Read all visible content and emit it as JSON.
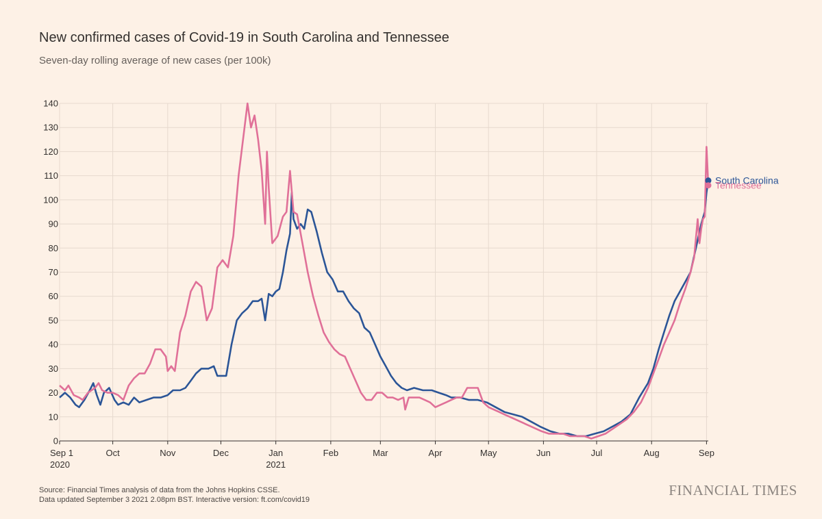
{
  "header": {
    "title": "New confirmed cases of Covid-19 in South Carolina and Tennessee",
    "subtitle": "Seven-day rolling average of new cases (per 100k)"
  },
  "footer": {
    "source_line1": "Source: Financial Times analysis of data from the Johns Hopkins CSSE.",
    "source_line2": "Data updated September 3 2021 2.08pm BST. Interactive version: ft.com/covid19",
    "brand": "FINANCIAL TIMES"
  },
  "chart_data": {
    "type": "line",
    "title": "New confirmed cases of Covid-19 in South Carolina and Tennessee",
    "subtitle": "Seven-day rolling average of new cases (per 100k)",
    "xlabel": "",
    "ylabel": "",
    "x_range": [
      "2020-09-01",
      "2021-09-02"
    ],
    "ylim": [
      0,
      140
    ],
    "yticks": [
      0,
      10,
      20,
      30,
      40,
      50,
      60,
      70,
      80,
      90,
      100,
      110,
      120,
      130,
      140
    ],
    "xticks": [
      {
        "date": "2020-09-01",
        "label": "Sep 1",
        "sublabel": "2020"
      },
      {
        "date": "2020-10-01",
        "label": "Oct",
        "sublabel": ""
      },
      {
        "date": "2020-11-01",
        "label": "Nov",
        "sublabel": ""
      },
      {
        "date": "2020-12-01",
        "label": "Dec",
        "sublabel": ""
      },
      {
        "date": "2021-01-01",
        "label": "Jan",
        "sublabel": "2021"
      },
      {
        "date": "2021-02-01",
        "label": "Feb",
        "sublabel": ""
      },
      {
        "date": "2021-03-01",
        "label": "Mar",
        "sublabel": ""
      },
      {
        "date": "2021-04-01",
        "label": "Apr",
        "sublabel": ""
      },
      {
        "date": "2021-05-01",
        "label": "May",
        "sublabel": ""
      },
      {
        "date": "2021-06-01",
        "label": "Jun",
        "sublabel": ""
      },
      {
        "date": "2021-07-01",
        "label": "Jul",
        "sublabel": ""
      },
      {
        "date": "2021-08-01",
        "label": "Aug",
        "sublabel": ""
      },
      {
        "date": "2021-09-01",
        "label": "Sep",
        "sublabel": ""
      }
    ],
    "grid": true,
    "legend": "end-of-line labels",
    "series": [
      {
        "name": "South Carolina",
        "color": "#2B5597",
        "points": [
          [
            "2020-09-01",
            18
          ],
          [
            "2020-09-04",
            20
          ],
          [
            "2020-09-07",
            18
          ],
          [
            "2020-09-10",
            15
          ],
          [
            "2020-09-12",
            14
          ],
          [
            "2020-09-15",
            17
          ],
          [
            "2020-09-18",
            21
          ],
          [
            "2020-09-20",
            24
          ],
          [
            "2020-09-22",
            19
          ],
          [
            "2020-09-24",
            15
          ],
          [
            "2020-09-26",
            20
          ],
          [
            "2020-09-29",
            22
          ],
          [
            "2020-10-02",
            17
          ],
          [
            "2020-10-04",
            15
          ],
          [
            "2020-10-07",
            16
          ],
          [
            "2020-10-10",
            15
          ],
          [
            "2020-10-13",
            18
          ],
          [
            "2020-10-16",
            16
          ],
          [
            "2020-10-20",
            17
          ],
          [
            "2020-10-24",
            18
          ],
          [
            "2020-10-28",
            18
          ],
          [
            "2020-11-01",
            19
          ],
          [
            "2020-11-04",
            21
          ],
          [
            "2020-11-08",
            21
          ],
          [
            "2020-11-11",
            22
          ],
          [
            "2020-11-14",
            25
          ],
          [
            "2020-11-17",
            28
          ],
          [
            "2020-11-20",
            30
          ],
          [
            "2020-11-24",
            30
          ],
          [
            "2020-11-27",
            31
          ],
          [
            "2020-11-29",
            27
          ],
          [
            "2020-12-02",
            27
          ],
          [
            "2020-12-04",
            27
          ],
          [
            "2020-12-07",
            40
          ],
          [
            "2020-12-10",
            50
          ],
          [
            "2020-12-13",
            53
          ],
          [
            "2020-12-16",
            55
          ],
          [
            "2020-12-19",
            58
          ],
          [
            "2020-12-22",
            58
          ],
          [
            "2020-12-24",
            59
          ],
          [
            "2020-12-26",
            50
          ],
          [
            "2020-12-28",
            61
          ],
          [
            "2020-12-30",
            60
          ],
          [
            "2021-01-01",
            62
          ],
          [
            "2021-01-03",
            63
          ],
          [
            "2021-01-05",
            70
          ],
          [
            "2021-01-07",
            79
          ],
          [
            "2021-01-09",
            86
          ],
          [
            "2021-01-10",
            103
          ],
          [
            "2021-01-11",
            92
          ],
          [
            "2021-01-13",
            88
          ],
          [
            "2021-01-15",
            90
          ],
          [
            "2021-01-17",
            88
          ],
          [
            "2021-01-19",
            96
          ],
          [
            "2021-01-21",
            95
          ],
          [
            "2021-01-24",
            87
          ],
          [
            "2021-01-27",
            78
          ],
          [
            "2021-01-30",
            70
          ],
          [
            "2021-02-02",
            67
          ],
          [
            "2021-02-05",
            62
          ],
          [
            "2021-02-08",
            62
          ],
          [
            "2021-02-11",
            58
          ],
          [
            "2021-02-14",
            55
          ],
          [
            "2021-02-17",
            53
          ],
          [
            "2021-02-20",
            47
          ],
          [
            "2021-02-23",
            45
          ],
          [
            "2021-02-26",
            40
          ],
          [
            "2021-03-01",
            35
          ],
          [
            "2021-03-04",
            31
          ],
          [
            "2021-03-07",
            27
          ],
          [
            "2021-03-10",
            24
          ],
          [
            "2021-03-13",
            22
          ],
          [
            "2021-03-16",
            21
          ],
          [
            "2021-03-20",
            22
          ],
          [
            "2021-03-25",
            21
          ],
          [
            "2021-03-30",
            21
          ],
          [
            "2021-04-03",
            20
          ],
          [
            "2021-04-07",
            19
          ],
          [
            "2021-04-10",
            18
          ],
          [
            "2021-04-15",
            18
          ],
          [
            "2021-04-20",
            17
          ],
          [
            "2021-04-25",
            17
          ],
          [
            "2021-04-30",
            16
          ],
          [
            "2021-05-05",
            14
          ],
          [
            "2021-05-10",
            12
          ],
          [
            "2021-05-15",
            11
          ],
          [
            "2021-05-20",
            10
          ],
          [
            "2021-05-25",
            8
          ],
          [
            "2021-05-30",
            6
          ],
          [
            "2021-06-05",
            4
          ],
          [
            "2021-06-10",
            3
          ],
          [
            "2021-06-15",
            3
          ],
          [
            "2021-06-20",
            2
          ],
          [
            "2021-06-25",
            2
          ],
          [
            "2021-06-30",
            3
          ],
          [
            "2021-07-05",
            4
          ],
          [
            "2021-07-10",
            6
          ],
          [
            "2021-07-15",
            8
          ],
          [
            "2021-07-20",
            11
          ],
          [
            "2021-07-25",
            18
          ],
          [
            "2021-07-30",
            24
          ],
          [
            "2021-08-02",
            30
          ],
          [
            "2021-08-05",
            38
          ],
          [
            "2021-08-08",
            45
          ],
          [
            "2021-08-11",
            52
          ],
          [
            "2021-08-14",
            58
          ],
          [
            "2021-08-17",
            62
          ],
          [
            "2021-08-20",
            66
          ],
          [
            "2021-08-23",
            70
          ],
          [
            "2021-08-26",
            80
          ],
          [
            "2021-08-29",
            90
          ],
          [
            "2021-08-31",
            95
          ],
          [
            "2021-09-01",
            103
          ],
          [
            "2021-09-02",
            108
          ]
        ]
      },
      {
        "name": "Tennessee",
        "color": "#E07098",
        "points": [
          [
            "2020-09-01",
            23
          ],
          [
            "2020-09-04",
            21
          ],
          [
            "2020-09-06",
            23
          ],
          [
            "2020-09-09",
            19
          ],
          [
            "2020-09-12",
            18
          ],
          [
            "2020-09-14",
            17
          ],
          [
            "2020-09-17",
            20
          ],
          [
            "2020-09-21",
            22
          ],
          [
            "2020-09-23",
            24
          ],
          [
            "2020-09-25",
            21
          ],
          [
            "2020-09-28",
            20
          ],
          [
            "2020-10-01",
            20
          ],
          [
            "2020-10-04",
            19
          ],
          [
            "2020-10-07",
            17
          ],
          [
            "2020-10-10",
            23
          ],
          [
            "2020-10-13",
            26
          ],
          [
            "2020-10-16",
            28
          ],
          [
            "2020-10-19",
            28
          ],
          [
            "2020-10-22",
            32
          ],
          [
            "2020-10-25",
            38
          ],
          [
            "2020-10-28",
            38
          ],
          [
            "2020-10-31",
            35
          ],
          [
            "2020-11-01",
            29
          ],
          [
            "2020-11-03",
            31
          ],
          [
            "2020-11-05",
            29
          ],
          [
            "2020-11-08",
            45
          ],
          [
            "2020-11-11",
            52
          ],
          [
            "2020-11-14",
            62
          ],
          [
            "2020-11-17",
            66
          ],
          [
            "2020-11-20",
            64
          ],
          [
            "2020-11-23",
            50
          ],
          [
            "2020-11-26",
            55
          ],
          [
            "2020-11-29",
            72
          ],
          [
            "2020-12-02",
            75
          ],
          [
            "2020-12-05",
            72
          ],
          [
            "2020-12-08",
            85
          ],
          [
            "2020-12-11",
            110
          ],
          [
            "2020-12-14",
            128
          ],
          [
            "2020-12-16",
            140
          ],
          [
            "2020-12-18",
            130
          ],
          [
            "2020-12-20",
            135
          ],
          [
            "2020-12-22",
            125
          ],
          [
            "2020-12-24",
            112
          ],
          [
            "2020-12-26",
            90
          ],
          [
            "2020-12-27",
            120
          ],
          [
            "2020-12-28",
            105
          ],
          [
            "2020-12-30",
            82
          ],
          [
            "2021-01-02",
            85
          ],
          [
            "2021-01-05",
            93
          ],
          [
            "2021-01-07",
            95
          ],
          [
            "2021-01-09",
            112
          ],
          [
            "2021-01-11",
            95
          ],
          [
            "2021-01-13",
            94
          ],
          [
            "2021-01-16",
            82
          ],
          [
            "2021-01-19",
            70
          ],
          [
            "2021-01-22",
            60
          ],
          [
            "2021-01-25",
            52
          ],
          [
            "2021-01-28",
            45
          ],
          [
            "2021-01-31",
            41
          ],
          [
            "2021-02-03",
            38
          ],
          [
            "2021-02-06",
            36
          ],
          [
            "2021-02-09",
            35
          ],
          [
            "2021-02-12",
            30
          ],
          [
            "2021-02-15",
            25
          ],
          [
            "2021-02-18",
            20
          ],
          [
            "2021-02-21",
            17
          ],
          [
            "2021-02-24",
            17
          ],
          [
            "2021-02-27",
            20
          ],
          [
            "2021-03-02",
            20
          ],
          [
            "2021-03-05",
            18
          ],
          [
            "2021-03-08",
            18
          ],
          [
            "2021-03-11",
            17
          ],
          [
            "2021-03-14",
            18
          ],
          [
            "2021-03-15",
            13
          ],
          [
            "2021-03-17",
            18
          ],
          [
            "2021-03-20",
            18
          ],
          [
            "2021-03-23",
            18
          ],
          [
            "2021-03-26",
            17
          ],
          [
            "2021-03-29",
            16
          ],
          [
            "2021-04-01",
            14
          ],
          [
            "2021-04-04",
            15
          ],
          [
            "2021-04-07",
            16
          ],
          [
            "2021-04-10",
            17
          ],
          [
            "2021-04-13",
            18
          ],
          [
            "2021-04-16",
            18
          ],
          [
            "2021-04-19",
            22
          ],
          [
            "2021-04-22",
            22
          ],
          [
            "2021-04-25",
            22
          ],
          [
            "2021-04-28",
            16
          ],
          [
            "2021-05-01",
            14
          ],
          [
            "2021-05-04",
            13
          ],
          [
            "2021-05-07",
            12
          ],
          [
            "2021-05-10",
            11
          ],
          [
            "2021-05-13",
            10
          ],
          [
            "2021-05-16",
            9
          ],
          [
            "2021-05-19",
            8
          ],
          [
            "2021-05-22",
            7
          ],
          [
            "2021-05-25",
            6
          ],
          [
            "2021-05-28",
            5
          ],
          [
            "2021-05-31",
            4
          ],
          [
            "2021-06-04",
            3
          ],
          [
            "2021-06-08",
            3
          ],
          [
            "2021-06-12",
            3
          ],
          [
            "2021-06-16",
            2
          ],
          [
            "2021-06-20",
            2
          ],
          [
            "2021-06-24",
            2
          ],
          [
            "2021-06-28",
            1
          ],
          [
            "2021-07-02",
            2
          ],
          [
            "2021-07-06",
            3
          ],
          [
            "2021-07-10",
            5
          ],
          [
            "2021-07-14",
            7
          ],
          [
            "2021-07-18",
            9
          ],
          [
            "2021-07-22",
            12
          ],
          [
            "2021-07-26",
            16
          ],
          [
            "2021-07-30",
            22
          ],
          [
            "2021-08-02",
            28
          ],
          [
            "2021-08-05",
            34
          ],
          [
            "2021-08-08",
            40
          ],
          [
            "2021-08-11",
            45
          ],
          [
            "2021-08-14",
            50
          ],
          [
            "2021-08-17",
            57
          ],
          [
            "2021-08-20",
            63
          ],
          [
            "2021-08-23",
            70
          ],
          [
            "2021-08-25",
            76
          ],
          [
            "2021-08-27",
            92
          ],
          [
            "2021-08-28",
            82
          ],
          [
            "2021-08-29",
            88
          ],
          [
            "2021-08-30",
            92
          ],
          [
            "2021-08-31",
            93
          ],
          [
            "2021-09-01",
            122
          ],
          [
            "2021-09-02",
            106
          ]
        ]
      }
    ]
  }
}
